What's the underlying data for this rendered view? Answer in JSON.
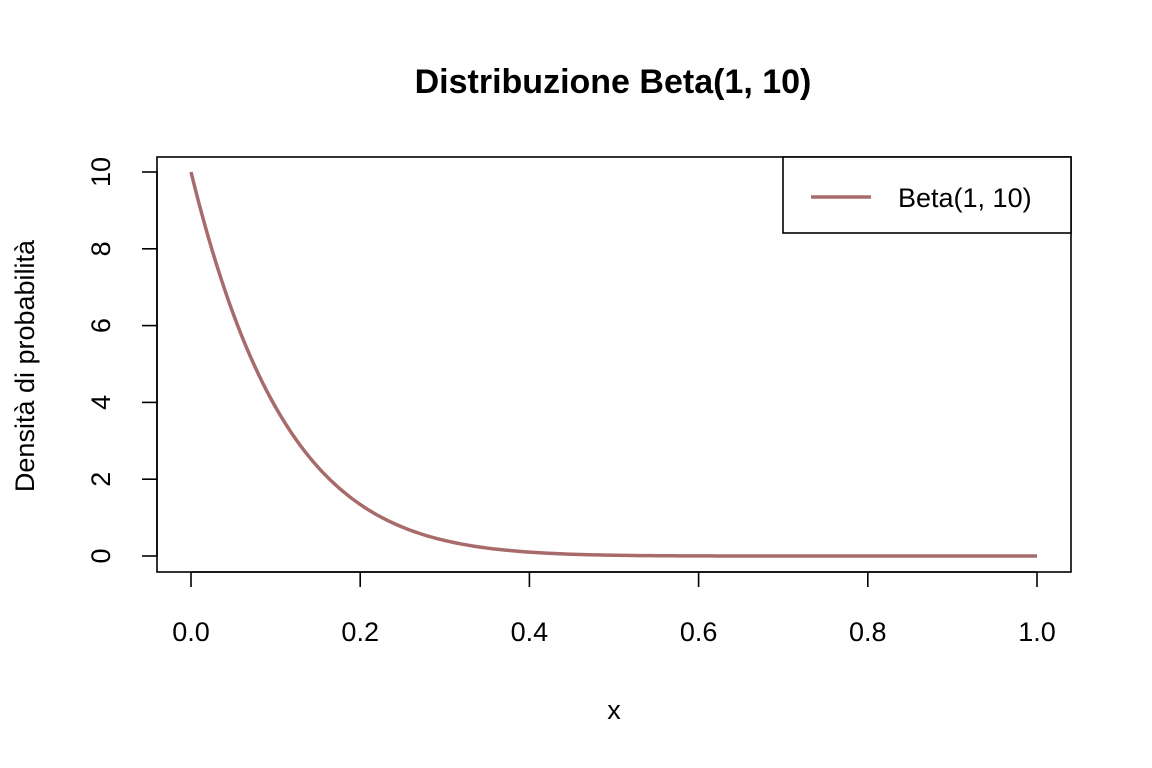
{
  "chart_data": {
    "type": "line",
    "title": "Distribuzione Beta(1, 10)",
    "xlabel": "x",
    "ylabel": "Densità di probabilità",
    "xlim": [
      0,
      1
    ],
    "ylim": [
      0,
      10
    ],
    "x_ticks": [
      0.0,
      0.2,
      0.4,
      0.6,
      0.8,
      1.0
    ],
    "x_tick_labels": [
      "0.0",
      "0.2",
      "0.4",
      "0.6",
      "0.8",
      "1.0"
    ],
    "y_ticks": [
      0,
      2,
      4,
      6,
      8,
      10
    ],
    "y_tick_labels": [
      "0",
      "2",
      "4",
      "6",
      "8",
      "10"
    ],
    "grid": false,
    "legend": {
      "position": "top-right",
      "entries": [
        "Beta(1, 10)"
      ]
    },
    "series": [
      {
        "name": "Beta(1, 10)",
        "color": "#A86B6B",
        "alpha": 1,
        "beta": 10,
        "x": [
          0,
          0.02,
          0.04,
          0.06,
          0.08,
          0.1,
          0.12,
          0.14,
          0.16,
          0.18,
          0.2,
          0.22,
          0.24,
          0.26,
          0.28,
          0.3,
          0.33,
          0.36,
          0.4,
          0.45,
          0.5,
          0.55,
          0.6,
          0.7,
          0.8,
          0.9,
          1.0
        ],
        "y": [
          10,
          8.34,
          6.93,
          5.74,
          4.72,
          3.87,
          3.16,
          2.57,
          2.08,
          1.67,
          1.34,
          1.07,
          0.85,
          0.67,
          0.53,
          0.4,
          0.27,
          0.18,
          0.1,
          0.046,
          0.02,
          0.0076,
          0.0026,
          0.0002,
          0.0,
          0.0,
          0.0
        ]
      }
    ]
  }
}
